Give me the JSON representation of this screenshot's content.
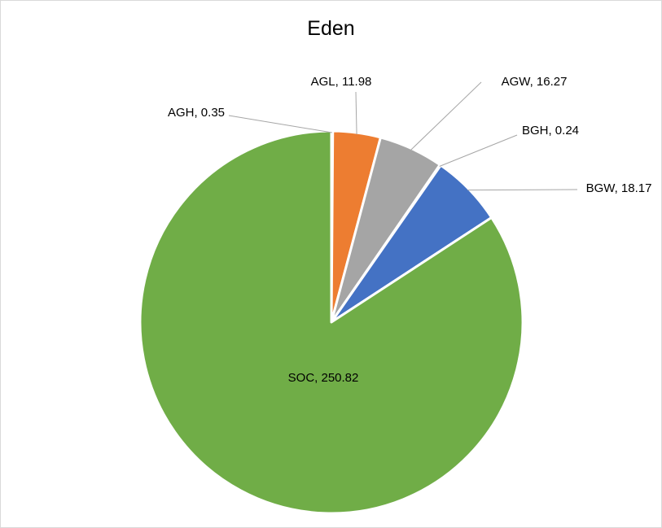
{
  "chart_data": {
    "type": "pie",
    "title": "Eden",
    "start_angle_deg": 0,
    "direction": "clockwise",
    "slices": [
      {
        "category": "AGH",
        "value": 0.35,
        "label": "AGH, 0.35",
        "color": "#5b9bd5"
      },
      {
        "category": "AGL",
        "value": 11.98,
        "label": "AGL, 11.98",
        "color": "#ed7d31"
      },
      {
        "category": "AGW",
        "value": 16.27,
        "label": "AGW, 16.27",
        "color": "#a5a5a5"
      },
      {
        "category": "BGH",
        "value": 0.24,
        "label": "BGH, 0.24",
        "color": "#ffc000"
      },
      {
        "category": "BGW",
        "value": 18.17,
        "label": "BGW, 18.17",
        "color": "#4472c4"
      },
      {
        "category": "SOC",
        "value": 250.82,
        "label": "SOC, 250.82",
        "color": "#70ad47"
      }
    ]
  }
}
